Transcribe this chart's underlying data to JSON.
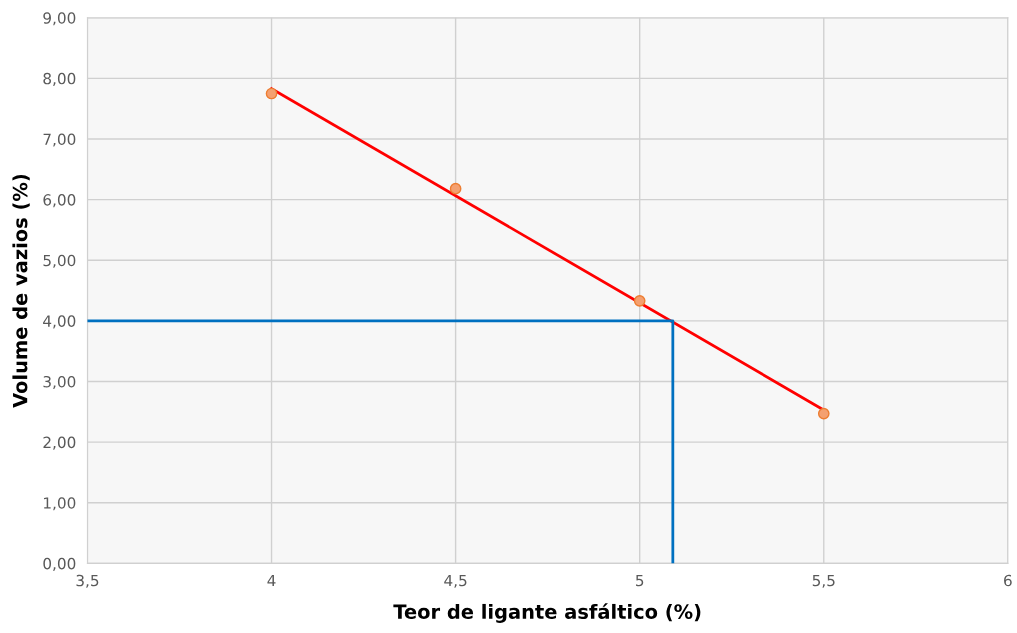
{
  "chart_data": {
    "type": "scatter",
    "xlabel": "Teor de ligante asfáltico (%)",
    "ylabel": "Volume de vazios (%)",
    "series": [
      {
        "color": "#f4a070",
        "x": [
          4,
          4.5,
          5,
          5.5
        ],
        "values": [
          7.75,
          6.18,
          4.33,
          2.47
        ],
        "marker": "circle"
      },
      {
        "type": "line",
        "color": "#ff0000",
        "x": [
          4,
          5.5
        ],
        "values": [
          7.83,
          2.53
        ]
      },
      {
        "type": "line",
        "color": "#0070c0",
        "x": [
          3.5,
          5.09,
          5.09
        ],
        "values": [
          4,
          4,
          0
        ]
      }
    ],
    "xlim": [
      3.5,
      6
    ],
    "xticks": [
      {
        "value": 3.5,
        "label": "3,5"
      },
      4,
      {
        "value": 4.5,
        "label": "4,5"
      },
      5,
      {
        "value": 5.5,
        "label": "5,5"
      },
      6
    ],
    "ylim": [
      0,
      9
    ],
    "yticks": [
      {
        "value": 0,
        "label": "0,00"
      },
      {
        "value": 1,
        "label": "1,00"
      },
      {
        "value": 2,
        "label": "2,00"
      },
      {
        "value": 3,
        "label": "3,00"
      },
      {
        "value": 4,
        "label": "4,00"
      },
      {
        "value": 5,
        "label": "5,00"
      },
      {
        "value": 6,
        "label": "6,00"
      },
      {
        "value": 7,
        "label": "7,00"
      },
      {
        "value": 8,
        "label": "8,00"
      },
      {
        "value": 9,
        "label": "9,00"
      }
    ],
    "grid": true
  }
}
